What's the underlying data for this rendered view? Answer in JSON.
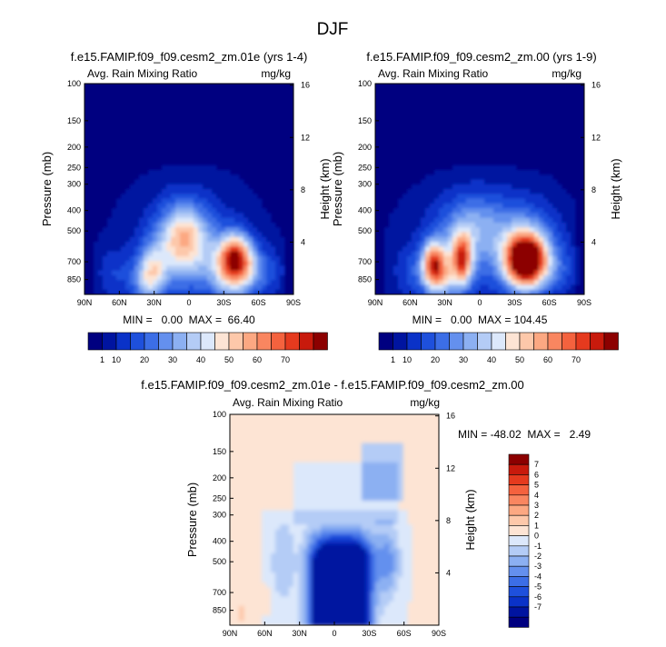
{
  "figure_title": "DJF",
  "colors": {
    "top_scale": [
      "#000080",
      "#0014a0",
      "#0a32c8",
      "#1e50dc",
      "#3c6ee6",
      "#6490ee",
      "#8cb0f2",
      "#b4ccf6",
      "#dce8fb",
      "#fde4d4",
      "#fdc8aa",
      "#fca882",
      "#f98660",
      "#f4623e",
      "#e53a1e",
      "#c81a0c",
      "#8c0000"
    ],
    "diff_scale": [
      "#000080",
      "#0014a0",
      "#0a32c8",
      "#1e50dc",
      "#3c6ee6",
      "#6490ee",
      "#8cb0f2",
      "#b4ccf6",
      "#dce8fb",
      "#fde4d4",
      "#fdc8aa",
      "#fca882",
      "#f98660",
      "#f4623e",
      "#e53a1e",
      "#c81a0c",
      "#8c0000"
    ],
    "background_top": "#000080",
    "background_diff": "#fde4d4"
  },
  "chart_data": [
    {
      "type": "heatmap",
      "id": "panel-left",
      "title": "f.e15.FAMIP.f09_f09.cesm2_zm.01e (yrs 1-4)",
      "variable": "Avg. Rain Mixing Ratio",
      "units": "mg/kg",
      "ylabel": "Pressure (mb)",
      "y2label": "Height (km)",
      "x_ticks": [
        "90N",
        "60N",
        "30N",
        "0",
        "30S",
        "60S",
        "90S"
      ],
      "x_tick_lats": [
        90,
        60,
        30,
        0,
        -30,
        -60,
        -90
      ],
      "y_ticks": [
        100,
        150,
        200,
        250,
        300,
        400,
        500,
        700,
        850
      ],
      "y2_ticks": [
        16,
        12,
        8,
        4
      ],
      "ylim": [
        1000,
        100
      ],
      "stats": "MIN =   0.00  MAX =  66.40",
      "min": 0.0,
      "max": 66.4,
      "features": [
        {
          "lat": 5,
          "p": 520,
          "dlat": 20,
          "dlogp": 0.34,
          "v": 30
        },
        {
          "lat": -2,
          "p": 600,
          "dlat": 28,
          "dlogp": 0.42,
          "v": 14
        },
        {
          "lat": -40,
          "p": 680,
          "dlat": 14,
          "dlogp": 0.26,
          "v": 58
        },
        {
          "lat": -38,
          "p": 800,
          "dlat": 22,
          "dlogp": 0.34,
          "v": 24
        },
        {
          "lat": 32,
          "p": 780,
          "dlat": 12,
          "dlogp": 0.28,
          "v": 26
        },
        {
          "lat": 38,
          "p": 880,
          "dlat": 14,
          "dlogp": 0.22,
          "v": 12
        },
        {
          "lat": 15,
          "p": 700,
          "dlat": 30,
          "dlogp": 0.36,
          "v": 10
        },
        {
          "lat": -65,
          "p": 780,
          "dlat": 16,
          "dlogp": 0.24,
          "v": 10
        },
        {
          "lat": 65,
          "p": 800,
          "dlat": 14,
          "dlogp": 0.26,
          "v": 8
        },
        {
          "lat": 0,
          "p": 380,
          "dlat": 46,
          "dlogp": 0.4,
          "v": 3
        },
        {
          "lat": 0,
          "p": 700,
          "dlat": 60,
          "dlogp": 0.6,
          "v": 4
        }
      ]
    },
    {
      "type": "heatmap",
      "id": "panel-right",
      "title": "f.e15.FAMIP.f09_f09.cesm2_zm.00 (yrs 1-9)",
      "variable": "Avg. Rain Mixing Ratio",
      "units": "mg/kg",
      "ylabel": "Pressure (mb)",
      "y2label": "Height (km)",
      "x_ticks": [
        "90N",
        "60N",
        "30N",
        "0",
        "30S",
        "60S",
        "90S"
      ],
      "x_tick_lats": [
        90,
        60,
        30,
        0,
        -30,
        -60,
        -90
      ],
      "y_ticks": [
        100,
        150,
        200,
        250,
        300,
        400,
        500,
        700,
        850
      ],
      "y2_ticks": [
        16,
        12,
        8,
        4
      ],
      "ylim": [
        1000,
        100
      ],
      "stats": "MIN =   0.00  MAX = 104.45",
      "min": 0.0,
      "max": 104.45,
      "features": [
        {
          "lat": -40,
          "p": 690,
          "dlat": 16,
          "dlogp": 0.26,
          "v": 85
        },
        {
          "lat": -38,
          "p": 620,
          "dlat": 28,
          "dlogp": 0.44,
          "v": 28
        },
        {
          "lat": 15,
          "p": 680,
          "dlat": 8,
          "dlogp": 0.26,
          "v": 48
        },
        {
          "lat": 40,
          "p": 710,
          "dlat": 9,
          "dlogp": 0.22,
          "v": 48
        },
        {
          "lat": 5,
          "p": 470,
          "dlat": 26,
          "dlogp": 0.34,
          "v": 18
        },
        {
          "lat": 25,
          "p": 700,
          "dlat": 22,
          "dlogp": 0.36,
          "v": 20
        },
        {
          "lat": 35,
          "p": 840,
          "dlat": 14,
          "dlogp": 0.22,
          "v": 22
        },
        {
          "lat": 0,
          "p": 420,
          "dlat": 50,
          "dlogp": 0.4,
          "v": 4
        },
        {
          "lat": 0,
          "p": 700,
          "dlat": 64,
          "dlogp": 0.6,
          "v": 5
        },
        {
          "lat": 60,
          "p": 780,
          "dlat": 14,
          "dlogp": 0.26,
          "v": 8
        },
        {
          "lat": -68,
          "p": 770,
          "dlat": 14,
          "dlogp": 0.24,
          "v": 8
        }
      ]
    },
    {
      "type": "heatmap",
      "id": "panel-diff",
      "title": "f.e15.FAMIP.f09_f09.cesm2_zm.01e - f.e15.FAMIP.f09_f09.cesm2_zm.00",
      "variable": "Avg. Rain Mixing Ratio",
      "units": "mg/kg",
      "ylabel": "Pressure (mb)",
      "y2label": "Height (km)",
      "x_ticks": [
        "90N",
        "60N",
        "30N",
        "0",
        "30S",
        "60S",
        "90S"
      ],
      "x_tick_lats": [
        90,
        60,
        30,
        0,
        -30,
        -60,
        -90
      ],
      "y_ticks": [
        100,
        150,
        200,
        250,
        300,
        400,
        500,
        700,
        850
      ],
      "y2_ticks": [
        16,
        12,
        8,
        4
      ],
      "ylim": [
        1000,
        100
      ],
      "stats": "MIN = -48.02  MAX =   2.49",
      "min": -48.02,
      "max": 2.49
    }
  ],
  "colorbar_top_labels": [
    "1",
    "10",
    "20",
    "30",
    "40",
    "50",
    "60",
    "70"
  ],
  "colorbar_diff_labels": [
    "7",
    "6",
    "5",
    "4",
    "3",
    "2",
    "1",
    "0",
    "-1",
    "-2",
    "-3",
    "-4",
    "-5",
    "-6",
    "-7"
  ]
}
